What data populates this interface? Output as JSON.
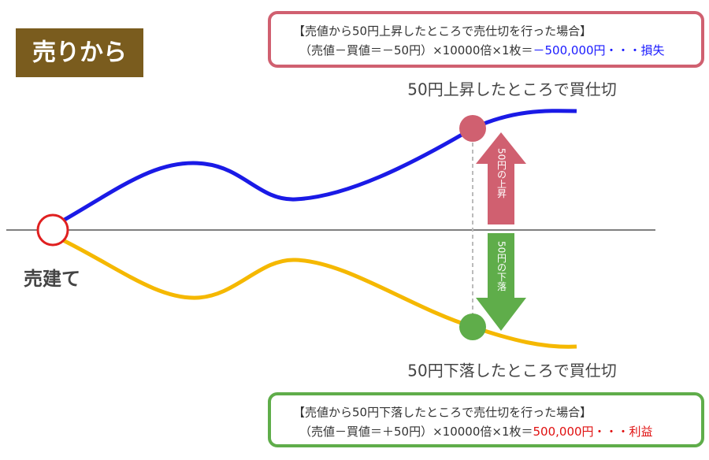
{
  "badge": {
    "label": "売りから"
  },
  "top_box": {
    "line1": "【売値から50円上昇したところで売仕切を行った場合】",
    "line2_prefix": "（売値－買値＝－50円）×10000倍×1枚＝",
    "line2_result": "－500,000円・・・損失"
  },
  "upper_point": {
    "label": "50円上昇したところで買仕切"
  },
  "up_arrow": {
    "label": "50円の上昇"
  },
  "start_point": {
    "label": "売建て"
  },
  "down_arrow": {
    "label": "50円の下落"
  },
  "lower_point": {
    "label": "50円下落したところで買仕切"
  },
  "bottom_box": {
    "line1": "【売値から50円下落したところで売仕切を行った場合】",
    "line2_prefix": "（売値－買値＝＋50円）×10000倍×1枚＝",
    "line2_result": "500,000円・・・利益"
  }
}
